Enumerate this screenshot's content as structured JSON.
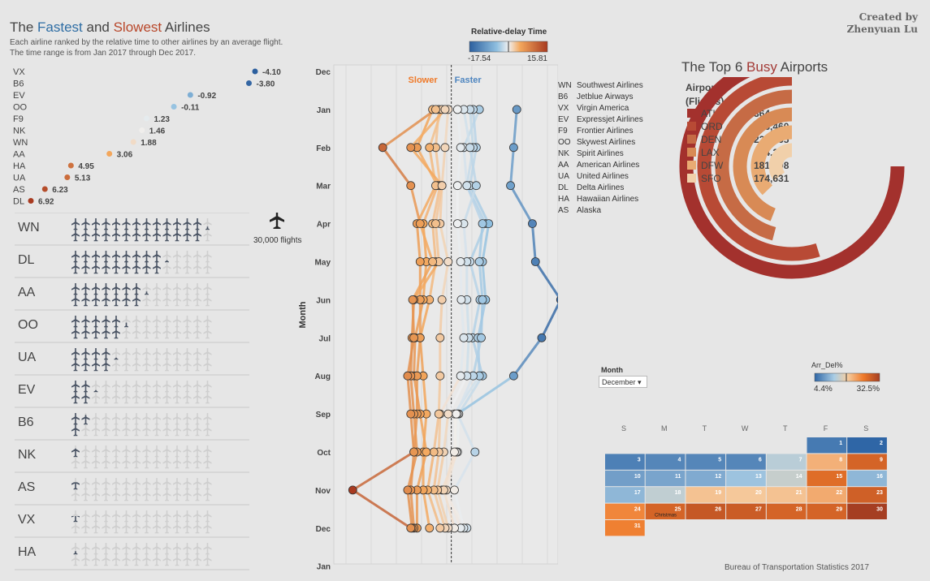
{
  "header": {
    "title_prefix": "The ",
    "title_fastest": "Fastest",
    "title_mid": " and ",
    "title_slowest": "Slowest",
    "title_suffix": " Airlines",
    "subtitle": "Each airline ranked by the relative time to other airlines by an average flight. The time range is from Jan 2017 through Dec 2017.",
    "credit_line1": "Created by",
    "credit_line2": "Zhenyuan Lu"
  },
  "source": "Bureau of Transportation Statistics 2017",
  "delay_legend": {
    "title": "Relative-delay Time",
    "min": "-17.54",
    "max": "15.81"
  },
  "plane_legend": {
    "icon": "airplane-icon",
    "label": "30,000 flights"
  },
  "line_chart": {
    "ylabel": "Month",
    "slower_label": "Slower",
    "faster_label": "Faster",
    "months": [
      "Dec",
      "Jan",
      "Feb",
      "Mar",
      "Apr",
      "May",
      "Jun",
      "Jul",
      "Aug",
      "Sep",
      "Oct",
      "Nov",
      "Dec",
      "Jan"
    ]
  },
  "airline_legend": [
    {
      "code": "WN",
      "name": "Southwest Airlines"
    },
    {
      "code": "B6",
      "name": "Jetblue Airways"
    },
    {
      "code": "VX",
      "name": "Virgin America"
    },
    {
      "code": "EV",
      "name": "Expressjet Airlines"
    },
    {
      "code": "F9",
      "name": "Frontier Airlines"
    },
    {
      "code": "OO",
      "name": "Skywest Airlines"
    },
    {
      "code": "NK",
      "name": "Spirit Airlines"
    },
    {
      "code": "AA",
      "name": "American Airlines"
    },
    {
      "code": "UA",
      "name": "United Airlines"
    },
    {
      "code": "DL",
      "name": "Delta Airlines"
    },
    {
      "code": "HA",
      "name": "Hawaiian Airlines"
    },
    {
      "code": "AS",
      "name": "Alaska"
    }
  ],
  "airports": {
    "title_prefix": "The Top 6 ",
    "title_busy": "Busy",
    "title_suffix": " Airports",
    "header_line1": "Airport",
    "header_line2": "(Flights)"
  },
  "calendar": {
    "month_label": "Month",
    "month_value": "December",
    "legend_title": "Arr_Del%",
    "legend_min": "4.4%",
    "legend_max": "32.5%",
    "weekdays": [
      "S",
      "M",
      "T",
      "W",
      "T",
      "F",
      "S"
    ],
    "holiday_label": "Christmas"
  },
  "chart_data": [
    {
      "type": "scatter",
      "title": "The Fastest and Slowest Airlines",
      "categories": [
        "VX",
        "B6",
        "EV",
        "OO",
        "F9",
        "NK",
        "WN",
        "AA",
        "HA",
        "UA",
        "AS",
        "DL"
      ],
      "values": [
        -4.1,
        -3.8,
        -0.92,
        -0.11,
        1.23,
        1.46,
        1.88,
        3.06,
        4.95,
        5.13,
        6.23,
        6.92
      ]
    },
    {
      "type": "bar",
      "title": "",
      "unit": "30,000 flights per icon",
      "categories": [
        "WN",
        "DL",
        "AA",
        "OO",
        "UA",
        "EV",
        "B6",
        "NK",
        "AS",
        "VX",
        "HA"
      ],
      "values": [
        13.3,
        9.2,
        7.3,
        5.4,
        4.2,
        2.2,
        1.8,
        0.7,
        0.6,
        0.5,
        0.3
      ],
      "max_icons": 14
    },
    {
      "type": "line",
      "ylabel": "Month",
      "x_meaning": "Relative-delay Time",
      "x_range": [
        -17.54,
        15.81
      ],
      "months": [
        "Jan",
        "Feb",
        "Mar",
        "Apr",
        "May",
        "Jun",
        "Jul",
        "Aug",
        "Sep",
        "Oct",
        "Nov",
        "Dec"
      ],
      "series": [
        {
          "values": [
            -4.5,
            -2.0,
            -2.5,
            -5.5,
            -3.0,
            -4.6,
            -3.4,
            -5.0,
            -1.2,
            -1.0,
            1.5,
            -2.5
          ]
        },
        {
          "values": [
            -10.5,
            -10.0,
            -9.5,
            -13.0,
            -13.5,
            -17.54,
            -14.5,
            -10.0,
            -1.0,
            -3.8,
            -0.5,
            -2.0
          ]
        },
        {
          "values": [
            -3.5,
            -4.0,
            -3.0,
            -6.0,
            -5.0,
            -5.5,
            -4.3,
            -4.5,
            -0.5,
            -0.8,
            0.8,
            -1.5
          ]
        },
        {
          "values": [
            -3.0,
            -3.5,
            -2.5,
            -5.0,
            -4.5,
            -5.0,
            -4.8,
            -3.5,
            -0.8,
            -0.5,
            1.2,
            -0.5
          ]
        },
        {
          "values": [
            -2.0,
            -3.0,
            -4.0,
            -2.0,
            -2.5,
            -2.5,
            -2.8,
            -2.5,
            0.5,
            1.2,
            2.2,
            0.5
          ]
        },
        {
          "values": [
            -1.0,
            -1.5,
            -1.0,
            -1.0,
            -1.5,
            -1.6,
            -2.0,
            -1.5,
            1.8,
            2.0,
            2.8,
            1.0
          ]
        },
        {
          "values": [
            0.5,
            1.0,
            1.5,
            1.8,
            0.5,
            1.5,
            1.8,
            1.8,
            2.0,
            2.8,
            3.8,
            1.8
          ]
        },
        {
          "values": [
            2.0,
            2.5,
            1.8,
            3.0,
            2.5,
            3.5,
            5.0,
            4.5,
            4.0,
            4.5,
            4.5,
            3.5
          ]
        },
        {
          "values": [
            3.0,
            5.5,
            2.2,
            4.5,
            4.0,
            4.5,
            5.8,
            6.0,
            5.0,
            4.0,
            5.5,
            5.5
          ]
        },
        {
          "values": [
            1.5,
            3.5,
            2.5,
            5.5,
            5.0,
            5.0,
            5.0,
            5.5,
            5.5,
            6.0,
            6.5,
            6.0
          ]
        },
        {
          "values": [
            1.0,
            6.5,
            1.5,
            2.5,
            2.0,
            6.0,
            6.3,
            6.5,
            6.0,
            5.5,
            7.0,
            6.3
          ]
        },
        {
          "values": [
            2.5,
            11.0,
            6.5,
            5.0,
            3.0,
            6.2,
            6.0,
            7.0,
            6.5,
            6.0,
            15.81,
            6.5
          ]
        }
      ]
    },
    {
      "type": "pie",
      "title": "The Top 6 Busy Airports",
      "categories": [
        "ATL",
        "ORD",
        "DEN",
        "LAX",
        "DFW",
        "SFO"
      ],
      "values": [
        364655,
        266460,
        223165,
        214297,
        181208,
        174631
      ],
      "value_labels": [
        "364,655",
        "266,460",
        "223,165",
        "214,297",
        "181,208",
        "174,631"
      ],
      "colors": [
        "#a3312d",
        "#b84a35",
        "#c66b45",
        "#d88a55",
        "#e9ab73",
        "#f1d0aa"
      ]
    },
    {
      "type": "heatmap",
      "title": "December",
      "legend": "Arr_Del%",
      "range": [
        4.4,
        32.5
      ],
      "days": [
        1,
        2,
        3,
        4,
        5,
        6,
        7,
        8,
        9,
        10,
        11,
        12,
        13,
        14,
        15,
        16,
        17,
        18,
        19,
        20,
        21,
        22,
        23,
        24,
        25,
        26,
        27,
        28,
        29,
        30,
        31
      ],
      "values": [
        6.0,
        4.4,
        6.5,
        7.0,
        7.0,
        7.0,
        14.0,
        21.0,
        28.0,
        9.0,
        9.5,
        10.0,
        12.0,
        15.0,
        27.0,
        11.0,
        11.0,
        14.5,
        19.5,
        19.0,
        19.5,
        21.5,
        28.5,
        24.5,
        28.0,
        29.5,
        29.0,
        28.0,
        28.0,
        32.5,
        25.0
      ],
      "first_weekday": 5,
      "annotations": [
        {
          "day": 25,
          "label": "Christmas"
        }
      ]
    }
  ]
}
